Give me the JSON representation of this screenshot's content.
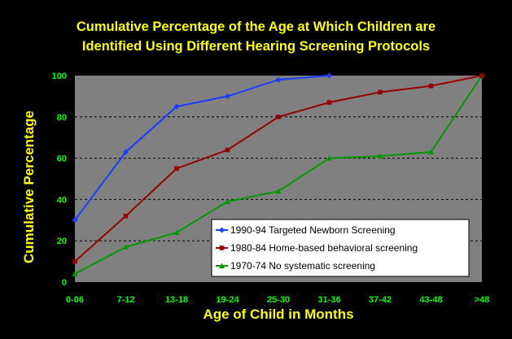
{
  "chart_data": {
    "type": "line",
    "title": "Cumulative Percentage of the Age at Which Children are",
    "subtitle": "Identified Using Different Hearing Screening Protocols",
    "xlabel": "Age of Child in Months",
    "ylabel": "Cumulative Percentage",
    "categories": [
      "0-06",
      "7-12",
      "13-18",
      "19-24",
      "25-30",
      "31-36",
      "37-42",
      "43-48",
      ">48"
    ],
    "ylim": [
      0,
      100
    ],
    "yticks": [
      0,
      20,
      40,
      60,
      80,
      100
    ],
    "grid": true,
    "legend_position": "bottom-right",
    "series": [
      {
        "name": "1990-94 Targeted Newborn Screening",
        "color": "#1a3cff",
        "marker": "diamond",
        "values": [
          30,
          63,
          85,
          90,
          98,
          100,
          null,
          null,
          null
        ]
      },
      {
        "name": "1980-84 Home-based behavioral screening",
        "color": "#990000",
        "marker": "square",
        "values": [
          10,
          32,
          55,
          64,
          80,
          87,
          92,
          95,
          100
        ]
      },
      {
        "name": "1970-74 No systematic screening",
        "color": "#009900",
        "marker": "triangle",
        "values": [
          4,
          17,
          24,
          39,
          44,
          60,
          61,
          63,
          100
        ]
      }
    ]
  },
  "colors": {
    "background": "#000000",
    "plot_area": "#808080",
    "title": "#ffff00",
    "tick_labels": "#00ff00"
  }
}
